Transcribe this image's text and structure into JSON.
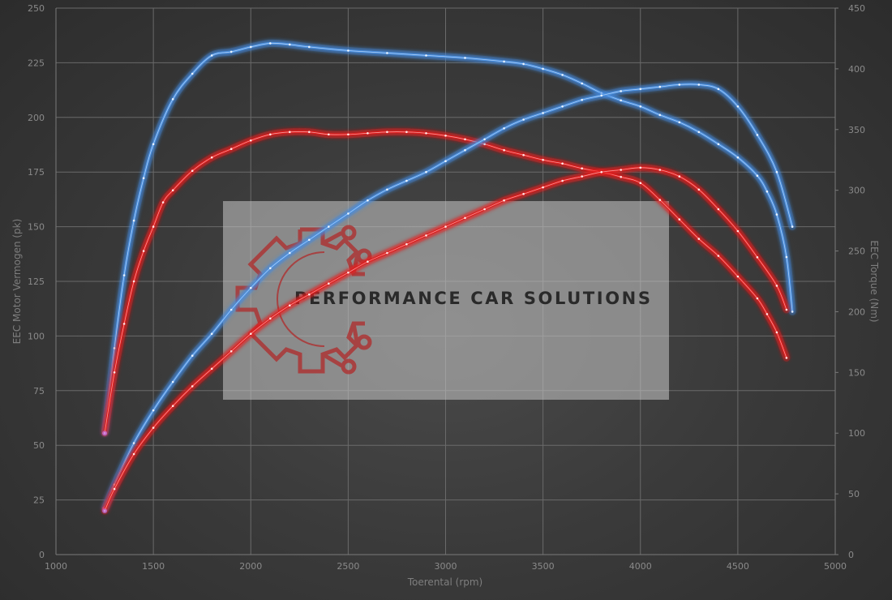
{
  "colors": {
    "stock": "#4a8fe0",
    "stock_glow": "#3d7cd6",
    "tuned": "#e01e1e",
    "tuned_glow": "#ff2a2a",
    "grid": "#6a6a6a",
    "watermark_panel": "#c8c8c8",
    "logo": "#b02a2a"
  },
  "watermark": {
    "text": "PERFORMANCE CAR SOLUTIONS",
    "icon": "gear-circuit-logo"
  },
  "chart_data": {
    "type": "line",
    "xlabel": "Toerental (rpm)",
    "ylabel": "EEC Motor Vermogen (pk)",
    "y2label": "EEC Torque (Nm)",
    "xlim": [
      1000,
      5000
    ],
    "ylim": [
      0,
      250
    ],
    "y2lim": [
      0,
      450
    ],
    "x_ticks": [
      "1000",
      "1500",
      "2000",
      "2500",
      "3000",
      "3500",
      "4000",
      "4500",
      "5000"
    ],
    "y_ticks": [
      "0",
      "25",
      "50",
      "75",
      "100",
      "125",
      "150",
      "175",
      "200",
      "225",
      "250"
    ],
    "y2_ticks": [
      "0",
      "50",
      "100",
      "150",
      "200",
      "250",
      "300",
      "350",
      "400",
      "450"
    ],
    "grid": true,
    "series": [
      {
        "color": "stock",
        "axis": "right",
        "x": [
          1250,
          1300,
          1350,
          1400,
          1450,
          1500,
          1600,
          1700,
          1800,
          1900,
          2000,
          2100,
          2200,
          2300,
          2500,
          2700,
          2900,
          3100,
          3300,
          3400,
          3500,
          3600,
          3700,
          3800,
          3900,
          4000,
          4100,
          4200,
          4300,
          4400,
          4500,
          4600,
          4650,
          4700,
          4750,
          4780
        ],
        "y": [
          100,
          170,
          230,
          275,
          310,
          338,
          375,
          396,
          411,
          414,
          418,
          421,
          420,
          418,
          415,
          413,
          411,
          409,
          406,
          404,
          400,
          395,
          388,
          380,
          374,
          369,
          362,
          356,
          348,
          338,
          327,
          312,
          299,
          280,
          245,
          200
        ]
      },
      {
        "color": "tuned",
        "axis": "right",
        "x": [
          1250,
          1300,
          1350,
          1400,
          1450,
          1500,
          1550,
          1600,
          1700,
          1800,
          1900,
          2000,
          2100,
          2200,
          2300,
          2400,
          2500,
          2600,
          2700,
          2800,
          2900,
          3000,
          3100,
          3200,
          3300,
          3400,
          3500,
          3600,
          3700,
          3800,
          3900,
          4000,
          4100,
          4200,
          4300,
          4400,
          4500,
          4600,
          4650,
          4700,
          4750
        ],
        "y": [
          100,
          150,
          190,
          225,
          250,
          270,
          290,
          300,
          316,
          327,
          334,
          341,
          346,
          348,
          348,
          346,
          346,
          347,
          348,
          348,
          347,
          345,
          342,
          338,
          333,
          329,
          325,
          322,
          318,
          315,
          311,
          306,
          292,
          276,
          260,
          246,
          229,
          211,
          198,
          183,
          162
        ]
      },
      {
        "color": "stock",
        "axis": "left",
        "x": [
          1250,
          1300,
          1400,
          1500,
          1600,
          1700,
          1800,
          1900,
          2000,
          2100,
          2200,
          2300,
          2400,
          2500,
          2600,
          2700,
          2800,
          2900,
          3000,
          3100,
          3200,
          3300,
          3400,
          3500,
          3600,
          3700,
          3800,
          3900,
          4000,
          4100,
          4200,
          4300,
          4400,
          4500,
          4600,
          4700,
          4780
        ],
        "y": [
          21,
          32,
          51,
          66,
          79,
          91,
          101,
          112,
          122,
          131,
          138,
          144,
          150,
          156,
          162,
          167,
          171,
          175,
          180,
          185,
          190,
          195,
          199,
          202,
          205,
          208,
          210,
          212,
          213,
          214,
          215,
          215,
          213,
          205,
          192,
          175,
          150
        ]
      },
      {
        "color": "tuned",
        "axis": "left",
        "x": [
          1250,
          1300,
          1400,
          1500,
          1600,
          1700,
          1800,
          1900,
          2000,
          2100,
          2200,
          2300,
          2400,
          2500,
          2600,
          2700,
          2800,
          2900,
          3000,
          3100,
          3200,
          3300,
          3400,
          3500,
          3600,
          3700,
          3800,
          3900,
          4000,
          4100,
          4200,
          4300,
          4400,
          4500,
          4600,
          4700,
          4750
        ],
        "y": [
          20,
          30,
          46,
          58,
          68,
          77,
          85,
          93,
          101,
          108,
          114,
          119,
          124,
          129,
          134,
          138,
          142,
          146,
          150,
          154,
          158,
          162,
          165,
          168,
          171,
          173,
          175,
          176,
          177,
          176,
          173,
          167,
          158,
          148,
          136,
          123,
          112
        ]
      }
    ]
  }
}
